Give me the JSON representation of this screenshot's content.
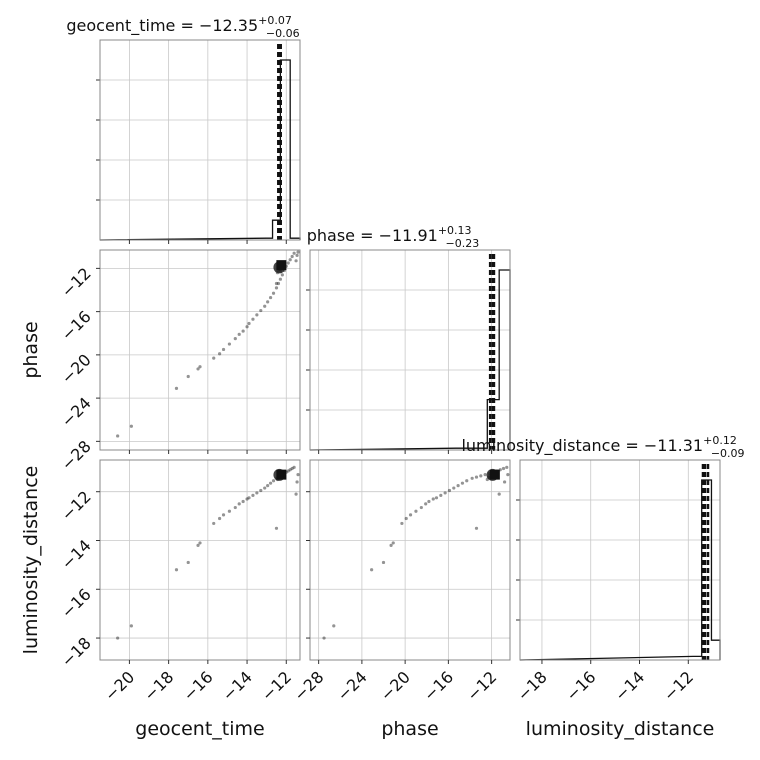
{
  "chart_data": {
    "type": "scatter",
    "parameters": [
      {
        "name": "geocent_time",
        "label": "geocent_time",
        "range": [
          -21.5,
          -11.3
        ],
        "ticks": [
          -20,
          -18,
          -16,
          -14,
          -12
        ],
        "title": {
          "prefix": "geocent_time = ",
          "median": "−12.35",
          "plus": "+0.07",
          "minus": "−0.06"
        },
        "median": -12.35,
        "q_low": -12.41,
        "q_high": -12.28,
        "truth": -12.25,
        "hist": [
          {
            "x0": -13.0,
            "x1": -12.7,
            "h": 0.01
          },
          {
            "x0": -12.7,
            "x1": -12.3,
            "h": 0.11
          },
          {
            "x0": -12.3,
            "x1": -11.8,
            "h": 1.0
          },
          {
            "x0": -11.8,
            "x1": -11.3,
            "h": 0.01
          }
        ]
      },
      {
        "name": "phase",
        "label": "phase",
        "range": [
          -28.8,
          -10.3
        ],
        "ticks": [
          -28,
          -24,
          -20,
          -16,
          -12
        ],
        "title": {
          "prefix": "phase = ",
          "median": "−11.91",
          "plus": "+0.13",
          "minus": "−0.23"
        },
        "median": -11.91,
        "q_low": -12.14,
        "q_high": -11.78,
        "truth": -11.7,
        "hist": [
          {
            "x0": -15.3,
            "x1": -12.4,
            "h": 0.01
          },
          {
            "x0": -12.4,
            "x1": -11.3,
            "h": 0.28
          },
          {
            "x0": -11.3,
            "x1": -10.3,
            "h": 1.0
          }
        ]
      },
      {
        "name": "luminosity_distance",
        "label": "luminosity_distance",
        "range": [
          -18.9,
          -10.7
        ],
        "ticks": [
          -18,
          -16,
          -14,
          -12
        ],
        "title": {
          "prefix": "luminosity_distance = ",
          "median": "−11.31",
          "plus": "+0.12",
          "minus": "−0.09"
        },
        "median": -11.31,
        "q_low": -11.4,
        "q_high": -11.19,
        "truth": -11.3,
        "hist": [
          {
            "x0": -11.8,
            "x1": -11.45,
            "h": 0.02
          },
          {
            "x0": -11.45,
            "x1": -11.05,
            "h": 1.0
          },
          {
            "x0": -11.05,
            "x1": -10.7,
            "h": 0.11
          }
        ]
      }
    ],
    "samples": [
      [
        -20.6,
        -27.5,
        -18.0
      ],
      [
        -19.9,
        -26.6,
        -17.5
      ],
      [
        -17.6,
        -23.1,
        -15.2
      ],
      [
        -17.0,
        -22.0,
        -14.9
      ],
      [
        -16.5,
        -21.3,
        -14.2
      ],
      [
        -16.4,
        -21.1,
        -14.1
      ],
      [
        -15.7,
        -20.3,
        -13.3
      ],
      [
        -15.4,
        -19.9,
        -13.1
      ],
      [
        -15.2,
        -19.5,
        -12.95
      ],
      [
        -14.9,
        -19.0,
        -12.8
      ],
      [
        -14.6,
        -18.5,
        -12.65
      ],
      [
        -14.4,
        -18.1,
        -12.5
      ],
      [
        -14.2,
        -17.8,
        -12.4
      ],
      [
        -14.0,
        -17.4,
        -12.3
      ],
      [
        -13.9,
        -17.1,
        -12.25
      ],
      [
        -13.7,
        -16.7,
        -12.15
      ],
      [
        -13.5,
        -16.3,
        -12.05
      ],
      [
        -13.3,
        -15.9,
        -11.95
      ],
      [
        -13.1,
        -15.5,
        -11.85
      ],
      [
        -12.95,
        -15.1,
        -11.75
      ],
      [
        -12.8,
        -14.7,
        -11.65
      ],
      [
        -12.65,
        -14.3,
        -11.55
      ],
      [
        -12.5,
        -13.8,
        -11.45
      ],
      [
        -12.4,
        -13.4,
        -11.4
      ],
      [
        -12.3,
        -13.0,
        -11.35
      ],
      [
        -12.2,
        -12.6,
        -11.3
      ],
      [
        -12.1,
        -12.2,
        -11.25
      ],
      [
        -12.0,
        -11.8,
        -11.2
      ],
      [
        -11.9,
        -11.5,
        -11.15
      ],
      [
        -11.8,
        -11.2,
        -11.1
      ],
      [
        -11.7,
        -10.9,
        -11.05
      ],
      [
        -11.6,
        -10.6,
        -11.0
      ],
      [
        -12.45,
        -12.4,
        -11.5
      ],
      [
        -12.35,
        -12.1,
        -11.45
      ],
      [
        -12.3,
        -12.3,
        -11.4
      ],
      [
        -12.38,
        -11.9,
        -11.35
      ],
      [
        -12.25,
        -12.0,
        -11.3
      ],
      [
        -12.42,
        -12.2,
        -11.42
      ],
      [
        -12.33,
        -11.95,
        -11.38
      ],
      [
        -12.28,
        -12.15,
        -11.33
      ],
      [
        -12.5,
        -13.4,
        -13.5
      ],
      [
        -11.5,
        -11.3,
        -12.1
      ],
      [
        -11.45,
        -10.8,
        -11.6
      ],
      [
        -11.4,
        -10.5,
        -11.3
      ]
    ]
  }
}
